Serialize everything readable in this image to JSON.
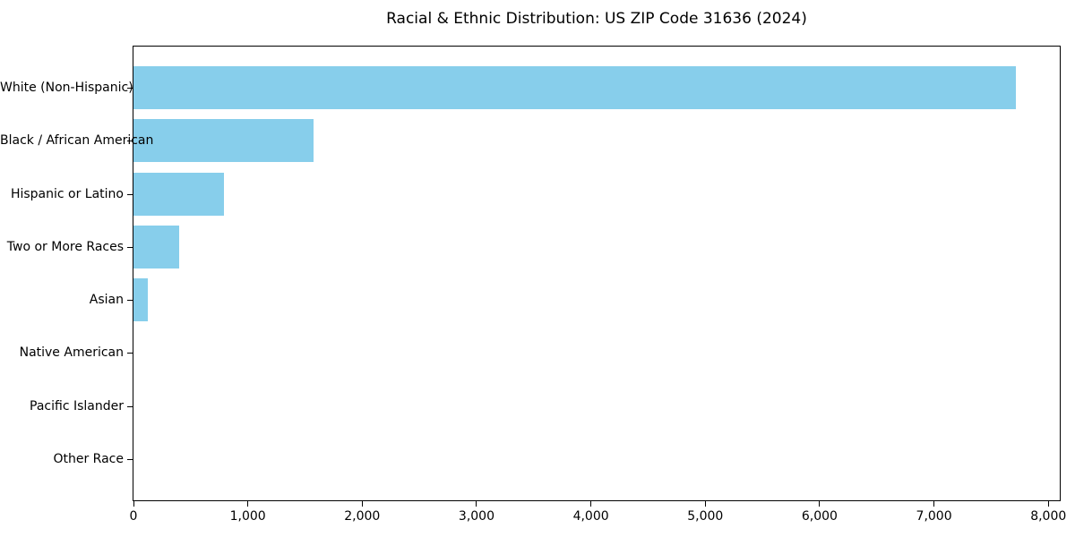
{
  "title": "Racial & Ethnic Distribution: US ZIP Code 31636 (2024)",
  "colors": {
    "bar": "#87CEEB",
    "axis": "#000000",
    "text": "#000000",
    "background": "#ffffff"
  },
  "chart_data": {
    "type": "bar",
    "orientation": "horizontal",
    "title": "Racial & Ethnic Distribution: US ZIP Code 31636 (2024)",
    "categories": [
      "White (Non-Hispanic)",
      "Black / African American",
      "Hispanic or Latino",
      "Two or More Races",
      "Asian",
      "Native American",
      "Pacific Islander",
      "Other Race"
    ],
    "values": [
      7715,
      1578,
      795,
      400,
      122,
      0,
      0,
      0
    ],
    "xlabel": "",
    "ylabel": "",
    "xlim": [
      0,
      8100
    ],
    "xticks": [
      {
        "value": 0,
        "label": "0"
      },
      {
        "value": 1000,
        "label": "1,000"
      },
      {
        "value": 2000,
        "label": "2,000"
      },
      {
        "value": 3000,
        "label": "3,000"
      },
      {
        "value": 4000,
        "label": "4,000"
      },
      {
        "value": 5000,
        "label": "5,000"
      },
      {
        "value": 6000,
        "label": "6,000"
      },
      {
        "value": 7000,
        "label": "7,000"
      },
      {
        "value": 8000,
        "label": "8,000"
      }
    ],
    "grid": false,
    "legend": false,
    "bar_color": "#87CEEB"
  }
}
